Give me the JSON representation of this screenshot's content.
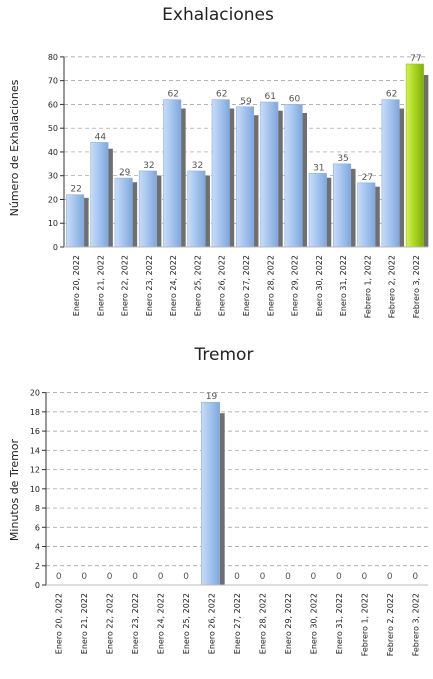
{
  "chart_data": [
    {
      "type": "bar",
      "title": "Exhalaciones",
      "ylabel": "Número de Exhalaciones",
      "xlabel": "",
      "ylim": [
        0,
        85
      ],
      "yticks": [
        0,
        10,
        20,
        30,
        40,
        50,
        60,
        70,
        80
      ],
      "grid": true,
      "categories": [
        "Enero 20, 2022",
        "Enero 21, 2022",
        "Enero 22, 2022",
        "Enero 23, 2022",
        "Enero 24, 2022",
        "Enero 25, 2022",
        "Enero 26, 2022",
        "Enero 27, 2022",
        "Enero 28, 2022",
        "Enero 29, 2022",
        "Enero 30, 2022",
        "Enero 31, 2022",
        "Febrero 1, 2022",
        "Febrero 2, 2022",
        "Febrero 3, 2022"
      ],
      "values": [
        22,
        44,
        29,
        32,
        62,
        32,
        62,
        59,
        61,
        60,
        31,
        35,
        27,
        62,
        77
      ],
      "bar_color": "#9dbfea",
      "highlight_index": 14,
      "highlight_color": "#a8d51e"
    },
    {
      "type": "bar",
      "title": "Tremor",
      "ylabel": "Minutos de Tremor",
      "xlabel": "",
      "ylim": [
        0,
        21
      ],
      "yticks": [
        0,
        2,
        4,
        6,
        8,
        10,
        12,
        14,
        16,
        18,
        20
      ],
      "grid": true,
      "categories": [
        "Enero 20, 2022",
        "Enero 21, 2022",
        "Enero 22, 2022",
        "Enero 23, 2022",
        "Enero 24, 2022",
        "Enero 25, 2022",
        "Enero 26, 2022",
        "Enero 27, 2022",
        "Enero 28, 2022",
        "Enero 29, 2022",
        "Enero 30, 2022",
        "Enero 31, 2022",
        "Febrero 1, 2022",
        "Febrero 2, 2022",
        "Febrero 3, 2022"
      ],
      "values": [
        0,
        0,
        0,
        0,
        0,
        0,
        19,
        0,
        0,
        0,
        0,
        0,
        0,
        0,
        0
      ],
      "bar_color": "#9dbfea"
    }
  ]
}
